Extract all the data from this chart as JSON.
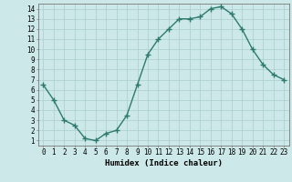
{
  "x": [
    0,
    1,
    2,
    3,
    4,
    5,
    6,
    7,
    8,
    9,
    10,
    11,
    12,
    13,
    14,
    15,
    16,
    17,
    18,
    19,
    20,
    21,
    22,
    23
  ],
  "y": [
    6.5,
    5.0,
    3.0,
    2.5,
    1.2,
    1.0,
    1.7,
    2.0,
    3.5,
    6.5,
    9.5,
    11.0,
    12.0,
    13.0,
    13.0,
    13.2,
    14.0,
    14.2,
    13.5,
    12.0,
    10.0,
    8.5,
    7.5,
    7.0
  ],
  "line_color": "#2d7a6e",
  "marker_color": "#2d7a6e",
  "bg_color": "#cce8e8",
  "grid_color": "#aacece",
  "xlabel": "Humidex (Indice chaleur)",
  "ylabel": "",
  "title": "",
  "xlim": [
    -0.5,
    23.5
  ],
  "ylim": [
    0.5,
    14.5
  ],
  "yticks": [
    1,
    2,
    3,
    4,
    5,
    6,
    7,
    8,
    9,
    10,
    11,
    12,
    13,
    14
  ],
  "xticks": [
    0,
    1,
    2,
    3,
    4,
    5,
    6,
    7,
    8,
    9,
    10,
    11,
    12,
    13,
    14,
    15,
    16,
    17,
    18,
    19,
    20,
    21,
    22,
    23
  ],
  "tick_fontsize": 5.5,
  "label_fontsize": 6.5,
  "linewidth": 1.0,
  "markersize": 4,
  "fig_width": 3.2,
  "fig_height": 2.0,
  "dpi": 100
}
